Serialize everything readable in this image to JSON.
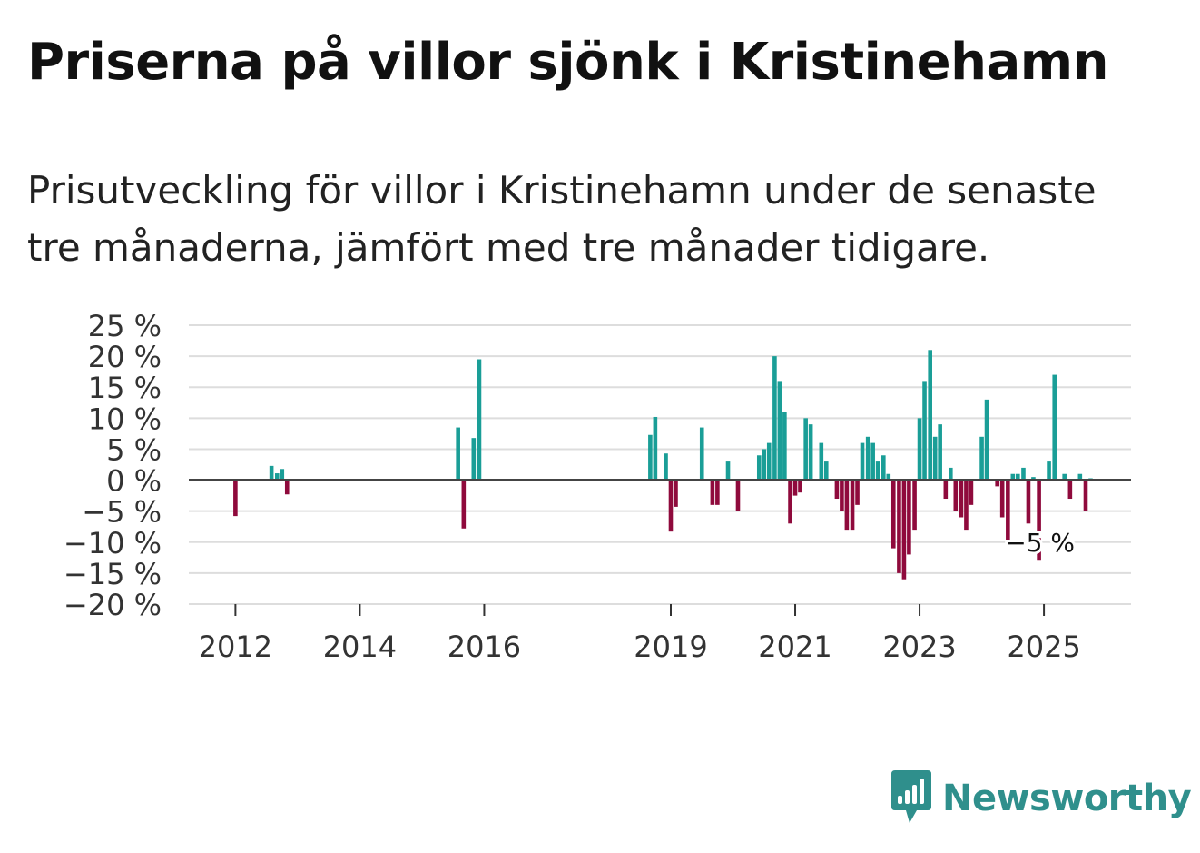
{
  "title": "Priserna på villor sjönk i Kristinehamn",
  "subtitle_line1": "Prisutveckling för villor i Kristinehamn under de senaste",
  "subtitle_line2": "tre månaderna, jämfört med tre månader tidigare.",
  "brand": {
    "name": "Newsworthy",
    "icon": "newsworthy-logo-icon"
  },
  "colors": {
    "positive": "#1a9e97",
    "negative": "#8f0a3c",
    "grid": "#dddddd",
    "zero": "#444444",
    "brand": "#2f8f8c"
  },
  "chart_data": {
    "type": "bar",
    "title": "Priserna på villor sjönk i Kristinehamn",
    "xlabel": "",
    "ylabel": "",
    "x_unit": "year (fractional)",
    "xlim": [
      2011.25,
      2026.4
    ],
    "ylim": [
      -20,
      25
    ],
    "y_ticks": [
      25,
      20,
      15,
      10,
      5,
      0,
      -5,
      -10,
      -15,
      -20
    ],
    "y_tick_labels": [
      "25 %",
      "20 %",
      "15 %",
      "10 %",
      "5 %",
      "0 %",
      "−5 %",
      "−10 %",
      "−15 %",
      "−20 %"
    ],
    "x_ticks": [
      2012,
      2014,
      2016,
      2019,
      2021,
      2023,
      2025
    ],
    "x_tick_labels": [
      "2012",
      "2014",
      "2016",
      "2019",
      "2021",
      "2023",
      "2025"
    ],
    "annotation": {
      "text": "−5 %",
      "x": 2025.67,
      "y": -5
    },
    "series": [
      {
        "name": "Prisutveckling",
        "x": [
          2012.0,
          2012.58,
          2012.67,
          2012.75,
          2012.83,
          2015.58,
          2015.67,
          2015.83,
          2015.92,
          2018.67,
          2018.75,
          2018.92,
          2019.0,
          2019.08,
          2019.5,
          2019.67,
          2019.75,
          2019.92,
          2020.08,
          2020.42,
          2020.5,
          2020.58,
          2020.67,
          2020.75,
          2020.83,
          2020.92,
          2021.0,
          2021.08,
          2021.17,
          2021.25,
          2021.42,
          2021.5,
          2021.67,
          2021.75,
          2021.83,
          2021.92,
          2022.0,
          2022.08,
          2022.17,
          2022.25,
          2022.33,
          2022.42,
          2022.5,
          2022.58,
          2022.67,
          2022.75,
          2022.83,
          2022.92,
          2023.0,
          2023.08,
          2023.17,
          2023.25,
          2023.33,
          2023.42,
          2023.5,
          2023.58,
          2023.67,
          2023.75,
          2023.83,
          2024.0,
          2024.08,
          2024.25,
          2024.33,
          2024.42,
          2024.5,
          2024.58,
          2024.67,
          2024.75,
          2024.83,
          2024.92,
          2025.08,
          2025.17,
          2025.33,
          2025.42,
          2025.58,
          2025.67,
          2025.75
        ],
        "values": [
          -5.8,
          2.3,
          1.1,
          1.8,
          -2.3,
          8.5,
          -7.8,
          6.8,
          19.5,
          7.3,
          10.2,
          4.3,
          -8.3,
          -4.3,
          8.5,
          -4.0,
          -4.0,
          3.0,
          -5.0,
          4.0,
          5.0,
          6.0,
          20.0,
          16.0,
          11.0,
          -7.0,
          -2.5,
          -2.0,
          10.0,
          9.0,
          6.0,
          3.0,
          -3.0,
          -5.0,
          -8.0,
          -8.0,
          -4.0,
          6.0,
          7.0,
          6.0,
          3.0,
          4.0,
          1.0,
          -11.0,
          -15.0,
          -16.0,
          -12.0,
          -8.0,
          10.0,
          16.0,
          21.0,
          7.0,
          9.0,
          -3.0,
          2.0,
          -5.0,
          -6.0,
          -8.0,
          -4.0,
          7.0,
          13.0,
          -1.0,
          -6.0,
          -10.0,
          1.0,
          1.0,
          2.0,
          -7.0,
          0.5,
          -13.0,
          3.0,
          17.0,
          1.0,
          -3.0,
          1.0,
          -5.0,
          0.3
        ]
      }
    ]
  }
}
